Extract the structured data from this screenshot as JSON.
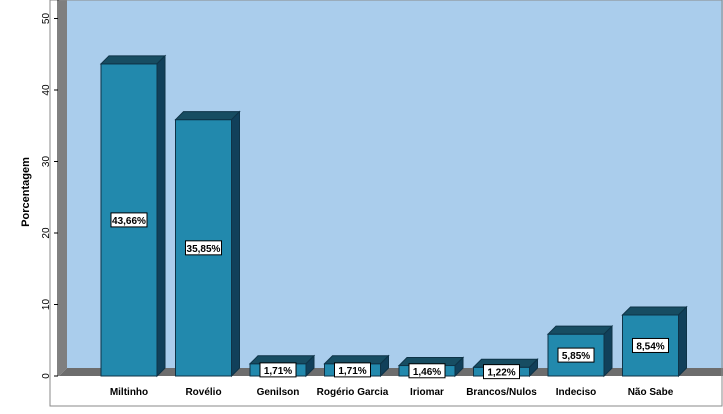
{
  "colors": {
    "plot_background": "#aacdec",
    "wall_left": "#7f7f7f",
    "floor": "#6d6d6d",
    "bar_front": "#2289ad",
    "bar_top": "#174d62",
    "bar_side": "#11405a",
    "label_bg": "#ffffff"
  },
  "chart_data": {
    "type": "bar",
    "title": "",
    "xlabel": "",
    "ylabel": "Porcentagem",
    "ylim": [
      0,
      50
    ],
    "yticks": [
      0,
      10,
      20,
      30,
      40,
      50
    ],
    "grid": false,
    "categories": [
      "Miltinho",
      "Rovélio",
      "Genilson",
      "Rogério Garcia",
      "Iriomar",
      "Brancos/Nulos",
      "Indeciso",
      "Não Sabe"
    ],
    "values": [
      43.66,
      35.85,
      1.71,
      1.71,
      1.46,
      1.22,
      5.85,
      8.54
    ],
    "data_labels": [
      "43,66%",
      "35,85%",
      "1,71%",
      "1,71%",
      "1,46%",
      "1,22%",
      "5,85%",
      "8,54%"
    ]
  }
}
